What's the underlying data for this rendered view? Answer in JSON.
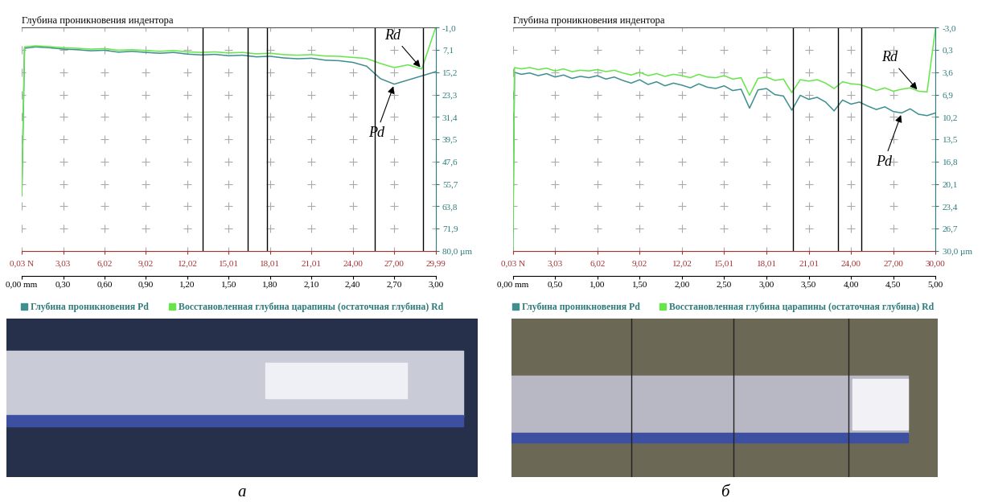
{
  "chart_data": [
    {
      "type": "line",
      "panel": "а",
      "title": "Глубина проникновения индентора",
      "x": [
        0.0,
        0.02,
        0.1,
        0.2,
        0.3,
        0.4,
        0.5,
        0.6,
        0.7,
        0.8,
        0.9,
        1.0,
        1.1,
        1.2,
        1.3,
        1.4,
        1.5,
        1.6,
        1.7,
        1.8,
        1.9,
        2.0,
        2.1,
        2.2,
        2.3,
        2.4,
        2.5,
        2.6,
        2.7,
        2.8,
        2.9,
        3.0
      ],
      "series": [
        {
          "name": "Глубина проникновения Pd",
          "color": "#3f8f8f",
          "values": [
            60.0,
            6.5,
            6.0,
            6.3,
            6.8,
            7.0,
            7.4,
            7.2,
            7.9,
            7.6,
            8.0,
            8.3,
            8.0,
            8.6,
            8.9,
            8.7,
            9.2,
            9.0,
            9.6,
            9.4,
            10.0,
            10.3,
            10.1,
            10.8,
            11.0,
            11.6,
            13.0,
            17.5,
            19.5,
            18.0,
            16.5,
            15.0
          ]
        },
        {
          "name": "Восстановленная глубина царапины (остаточная глубина) Rd",
          "color": "#66e64a",
          "values": [
            60.0,
            6.0,
            5.6,
            5.9,
            6.3,
            6.5,
            6.8,
            6.6,
            7.2,
            7.0,
            7.3,
            7.6,
            7.3,
            7.8,
            8.0,
            7.8,
            8.2,
            8.0,
            8.5,
            8.3,
            8.8,
            9.0,
            8.8,
            9.3,
            9.4,
            9.8,
            10.2,
            12.0,
            13.5,
            12.5,
            14.0,
            -1.0
          ]
        }
      ],
      "xlim": [
        0.0,
        3.0
      ],
      "xticks": [
        {
          "value": 0.0,
          "label": "0,00 mm"
        },
        {
          "value": 0.3,
          "label": "0,30"
        },
        {
          "value": 0.6,
          "label": "0,60"
        },
        {
          "value": 0.9,
          "label": "0,90"
        },
        {
          "value": 1.2,
          "label": "1,20"
        },
        {
          "value": 1.5,
          "label": "1,50"
        },
        {
          "value": 1.8,
          "label": "1,80"
        },
        {
          "value": 2.1,
          "label": "2,10"
        },
        {
          "value": 2.4,
          "label": "2,40"
        },
        {
          "value": 2.7,
          "label": "2,70"
        },
        {
          "value": 3.0,
          "label": "3,00"
        }
      ],
      "x2lim": [
        0.03,
        29.99
      ],
      "x2ticks": [
        {
          "value": 0.03,
          "label": "0,03 N"
        },
        {
          "value": 3.03,
          "label": "3,03"
        },
        {
          "value": 6.02,
          "label": "6,02"
        },
        {
          "value": 9.02,
          "label": "9,02"
        },
        {
          "value": 12.02,
          "label": "12,02"
        },
        {
          "value": 15.01,
          "label": "15,01"
        },
        {
          "value": 18.01,
          "label": "18,01"
        },
        {
          "value": 21.01,
          "label": "21,01"
        },
        {
          "value": 24.0,
          "label": "24,00"
        },
        {
          "value": 27.0,
          "label": "27,00"
        },
        {
          "value": 29.99,
          "label": "29,99"
        }
      ],
      "ylim": [
        80.0,
        -1.0
      ],
      "yticks": [
        {
          "value": -1.0,
          "label": "-1,0"
        },
        {
          "value": 7.1,
          "label": "7,1"
        },
        {
          "value": 15.2,
          "label": "15,2"
        },
        {
          "value": 23.3,
          "label": "23,3"
        },
        {
          "value": 31.4,
          "label": "31,4"
        },
        {
          "value": 39.5,
          "label": "39,5"
        },
        {
          "value": 47.6,
          "label": "47,6"
        },
        {
          "value": 55.7,
          "label": "55,7"
        },
        {
          "value": 63.8,
          "label": "63,8"
        },
        {
          "value": 71.9,
          "label": "71,9"
        },
        {
          "value": 80.0,
          "label": "80,0 µm"
        }
      ],
      "vertical_lines": [
        1.31,
        1.64,
        1.78,
        2.56,
        2.91
      ],
      "annotations": [
        {
          "text": "Rd",
          "x": 2.9,
          "y": 14.0
        },
        {
          "text": "Pd",
          "x": 2.7,
          "y": 19.5
        }
      ],
      "grid": true,
      "legend": "below"
    },
    {
      "type": "line",
      "panel": "б",
      "title": "Глубина проникновения индентора",
      "x": [
        0.0,
        0.02,
        0.1,
        0.2,
        0.3,
        0.4,
        0.5,
        0.6,
        0.7,
        0.8,
        0.9,
        1.0,
        1.1,
        1.2,
        1.3,
        1.4,
        1.5,
        1.6,
        1.7,
        1.8,
        1.9,
        2.0,
        2.1,
        2.2,
        2.3,
        2.4,
        2.5,
        2.6,
        2.7,
        2.8,
        2.9,
        3.0,
        3.1,
        3.2,
        3.3,
        3.4,
        3.5,
        3.6,
        3.7,
        3.8,
        3.9,
        4.0,
        4.1,
        4.2,
        4.3,
        4.4,
        4.5,
        4.6,
        4.7,
        4.8,
        4.9,
        5.0
      ],
      "series": [
        {
          "name": "Глубина проникновения Pd",
          "color": "#3f8f8f",
          "values": [
            30.0,
            3.6,
            3.9,
            3.7,
            4.1,
            3.8,
            4.3,
            4.0,
            4.5,
            4.2,
            4.4,
            4.1,
            4.6,
            4.3,
            4.8,
            5.2,
            4.7,
            5.4,
            5.0,
            5.6,
            5.2,
            5.5,
            5.9,
            5.3,
            5.8,
            6.0,
            5.6,
            6.3,
            6.1,
            8.9,
            6.2,
            6.0,
            6.9,
            7.1,
            9.2,
            7.0,
            7.6,
            7.3,
            8.0,
            9.3,
            7.7,
            8.3,
            8.0,
            8.6,
            9.1,
            8.7,
            9.4,
            9.6,
            9.0,
            9.8,
            10.0,
            9.6
          ]
        },
        {
          "name": "Восстановленная глубина царапины (остаточная глубина) Rd",
          "color": "#66e64a",
          "values": [
            30.0,
            2.9,
            3.1,
            2.9,
            3.2,
            3.0,
            3.4,
            3.1,
            3.5,
            3.3,
            3.4,
            3.2,
            3.5,
            3.3,
            3.7,
            4.0,
            3.6,
            4.1,
            3.8,
            4.2,
            3.9,
            4.1,
            4.4,
            3.9,
            4.3,
            4.4,
            4.1,
            4.6,
            4.4,
            7.0,
            4.5,
            4.3,
            4.8,
            4.6,
            6.6,
            4.7,
            4.9,
            4.7,
            5.2,
            6.0,
            5.0,
            5.3,
            5.4,
            5.8,
            6.3,
            5.9,
            6.4,
            6.1,
            5.9,
            6.4,
            6.5,
            -3.0
          ]
        }
      ],
      "xlim": [
        0.0,
        5.0
      ],
      "xticks": [
        {
          "value": 0.0,
          "label": "0,00 mm"
        },
        {
          "value": 0.5,
          "label": "0,50"
        },
        {
          "value": 1.0,
          "label": "1,00"
        },
        {
          "value": 1.5,
          "label": "1,50"
        },
        {
          "value": 2.0,
          "label": "2,00"
        },
        {
          "value": 2.5,
          "label": "2,50"
        },
        {
          "value": 3.0,
          "label": "3,00"
        },
        {
          "value": 3.5,
          "label": "3,50"
        },
        {
          "value": 4.0,
          "label": "4,00"
        },
        {
          "value": 4.5,
          "label": "4,50"
        },
        {
          "value": 5.0,
          "label": "5,00"
        }
      ],
      "x2lim": [
        0.03,
        30.0
      ],
      "x2ticks": [
        {
          "value": 0.03,
          "label": "0,03 N"
        },
        {
          "value": 3.03,
          "label": "3,03"
        },
        {
          "value": 6.02,
          "label": "6,02"
        },
        {
          "value": 9.02,
          "label": "9,02"
        },
        {
          "value": 12.02,
          "label": "12,02"
        },
        {
          "value": 15.01,
          "label": "15,01"
        },
        {
          "value": 18.01,
          "label": "18,01"
        },
        {
          "value": 21.01,
          "label": "21,01"
        },
        {
          "value": 24.0,
          "label": "24,00"
        },
        {
          "value": 27.0,
          "label": "27,00"
        },
        {
          "value": 30.0,
          "label": "30,00"
        }
      ],
      "ylim": [
        30.0,
        -3.0
      ],
      "yticks": [
        {
          "value": -3.0,
          "label": "-3,0"
        },
        {
          "value": 0.3,
          "label": "0,3"
        },
        {
          "value": 3.6,
          "label": "3,6"
        },
        {
          "value": 6.9,
          "label": "6,9"
        },
        {
          "value": 10.2,
          "label": "10,2"
        },
        {
          "value": 13.5,
          "label": "13,5"
        },
        {
          "value": 16.8,
          "label": "16,8"
        },
        {
          "value": 20.1,
          "label": "20,1"
        },
        {
          "value": 23.4,
          "label": "23,4"
        },
        {
          "value": 26.7,
          "label": "26,7"
        },
        {
          "value": 30.0,
          "label": "30,0 µm"
        }
      ],
      "vertical_lines": [
        3.31,
        3.85,
        4.12
      ],
      "annotations": [
        {
          "text": "Rd",
          "x": 4.8,
          "y": 6.4
        },
        {
          "text": "Pd",
          "x": 4.6,
          "y": 9.6
        }
      ],
      "grid": true,
      "legend": "below"
    }
  ]
}
